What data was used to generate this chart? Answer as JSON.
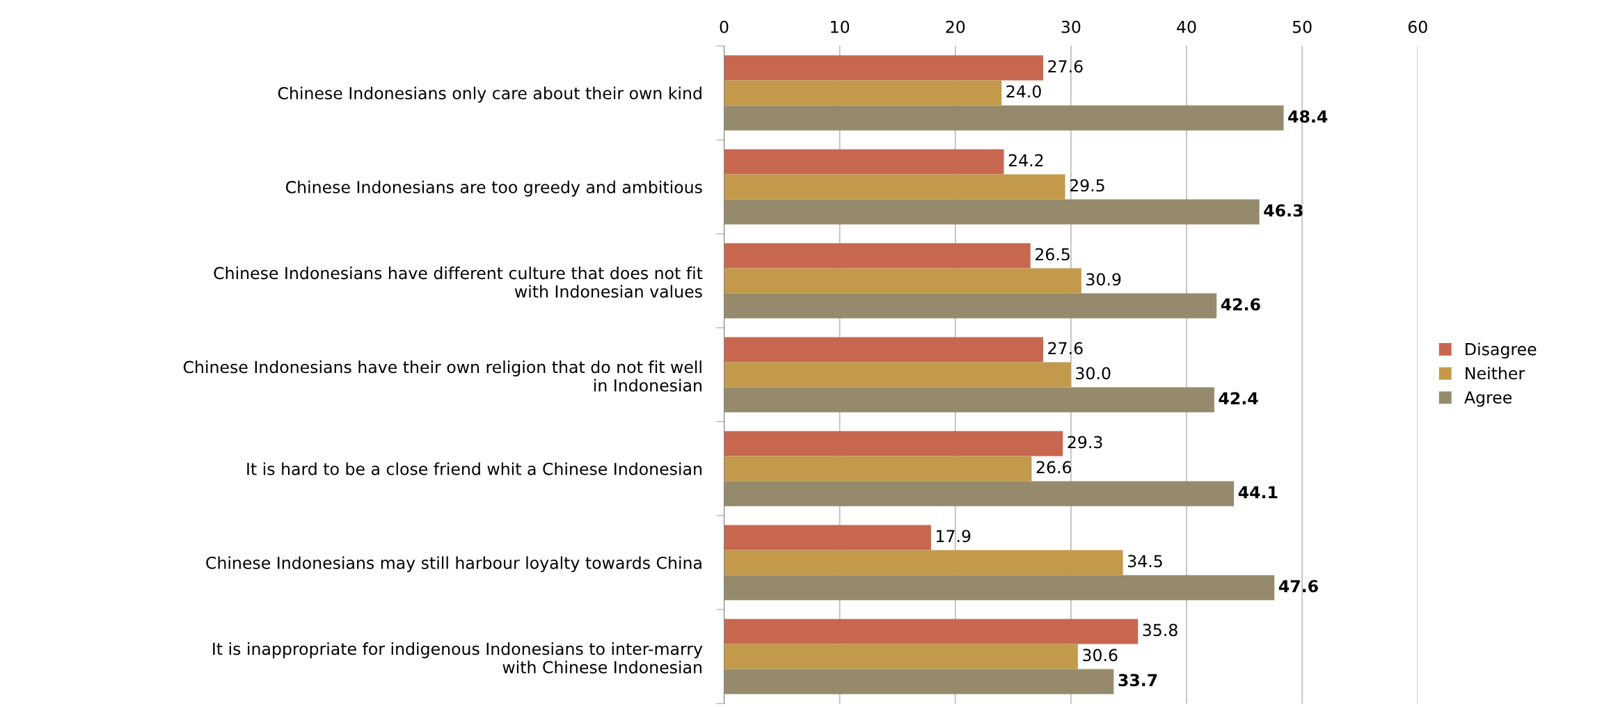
{
  "chart_data": {
    "type": "bar",
    "orientation": "horizontal",
    "categories": [
      "Chinese Indonesians only care about their own kind",
      "Chinese Indonesians are too greedy and ambitious",
      "Chinese Indonesians have different culture that does not fit\nwith Indonesian values",
      "Chinese Indonesians have their own religion that do not fit well\nin Indonesian",
      "It is hard to be a close friend whit a Chinese Indonesian",
      "Chinese Indonesians may still harbour loyalty towards China",
      "It is inappropriate for indigenous Indonesians to inter-marry\nwith Chinese Indonesian"
    ],
    "series": [
      {
        "name": "Disagree",
        "color": "#c8674f",
        "values": [
          27.6,
          24.2,
          26.5,
          27.6,
          29.3,
          17.9,
          35.8
        ],
        "value_labels": [
          "27.6",
          "24.2",
          "26.5",
          "27.6",
          "29.3",
          "17.9",
          "35.8"
        ]
      },
      {
        "name": "Neither",
        "color": "#c39a4c",
        "values": [
          24.0,
          29.5,
          30.9,
          30.0,
          26.6,
          34.5,
          30.6
        ],
        "value_labels": [
          "24.0",
          "29.5",
          "30.9",
          "30.0",
          "26.6",
          "34.5",
          "30.6"
        ]
      },
      {
        "name": "Agree",
        "color": "#958b6c",
        "values": [
          48.4,
          46.3,
          42.6,
          42.4,
          44.1,
          47.6,
          33.7
        ],
        "value_labels": [
          "48.4",
          "46.3",
          "42.6",
          "42.4",
          "44.1",
          "47.6",
          "33.7"
        ]
      }
    ],
    "xlim": [
      0,
      60
    ],
    "xticks": [
      0,
      10,
      20,
      30,
      40,
      50,
      60
    ],
    "grid": "x",
    "legend": "right"
  }
}
